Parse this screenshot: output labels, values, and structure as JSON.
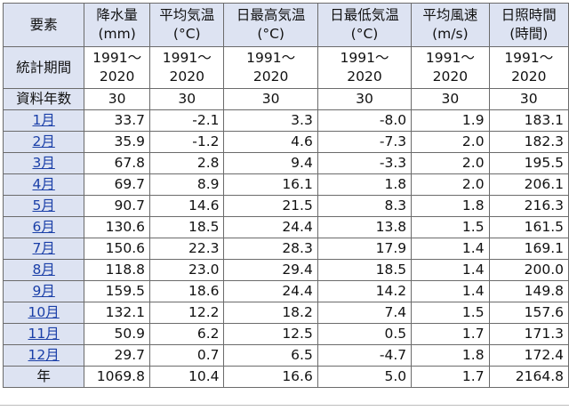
{
  "header": {
    "label_col": "要素",
    "columns": [
      {
        "name": "降水量",
        "unit": "(mm)"
      },
      {
        "name": "平均気温",
        "unit": "(°C)"
      },
      {
        "name": "日最高気温",
        "unit": "(°C)"
      },
      {
        "name": "日最低気温",
        "unit": "(°C)"
      },
      {
        "name": "平均風速",
        "unit": "(m/s)"
      },
      {
        "name": "日照時間",
        "unit": "(時間)"
      }
    ]
  },
  "period": {
    "label": "統計期間",
    "start": "1991〜",
    "end": "2020"
  },
  "years": {
    "label": "資料年数",
    "values": [
      "30",
      "30",
      "30",
      "30",
      "30",
      "30"
    ]
  },
  "months": [
    {
      "label": "1月",
      "values": [
        "33.7",
        "-2.1",
        "3.3",
        "-8.0",
        "1.9",
        "183.1"
      ]
    },
    {
      "label": "2月",
      "values": [
        "35.9",
        "-1.2",
        "4.6",
        "-7.3",
        "2.0",
        "182.3"
      ]
    },
    {
      "label": "3月",
      "values": [
        "67.8",
        "2.8",
        "9.4",
        "-3.3",
        "2.0",
        "195.5"
      ]
    },
    {
      "label": "4月",
      "values": [
        "69.7",
        "8.9",
        "16.1",
        "1.8",
        "2.0",
        "206.1"
      ]
    },
    {
      "label": "5月",
      "values": [
        "90.7",
        "14.6",
        "21.5",
        "8.3",
        "1.8",
        "216.3"
      ]
    },
    {
      "label": "6月",
      "values": [
        "130.6",
        "18.5",
        "24.4",
        "13.8",
        "1.5",
        "161.5"
      ]
    },
    {
      "label": "7月",
      "values": [
        "150.6",
        "22.3",
        "28.3",
        "17.9",
        "1.4",
        "169.1"
      ]
    },
    {
      "label": "8月",
      "values": [
        "118.8",
        "23.0",
        "29.4",
        "18.5",
        "1.4",
        "200.0"
      ]
    },
    {
      "label": "9月",
      "values": [
        "159.5",
        "18.6",
        "24.4",
        "14.2",
        "1.4",
        "149.8"
      ]
    },
    {
      "label": "10月",
      "values": [
        "132.1",
        "12.2",
        "18.2",
        "7.4",
        "1.5",
        "157.6"
      ]
    },
    {
      "label": "11月",
      "values": [
        "50.9",
        "6.2",
        "12.5",
        "0.5",
        "1.7",
        "171.3"
      ]
    },
    {
      "label": "12月",
      "values": [
        "29.7",
        "0.7",
        "6.5",
        "-4.7",
        "1.8",
        "172.4"
      ]
    }
  ],
  "annual": {
    "label": "年",
    "values": [
      "1069.8",
      "10.4",
      "16.6",
      "5.0",
      "1.7",
      "2164.8"
    ]
  },
  "colors": {
    "header_bg": "#dde3f2",
    "link": "#1a3fa8",
    "border": "#6b6b6b"
  }
}
